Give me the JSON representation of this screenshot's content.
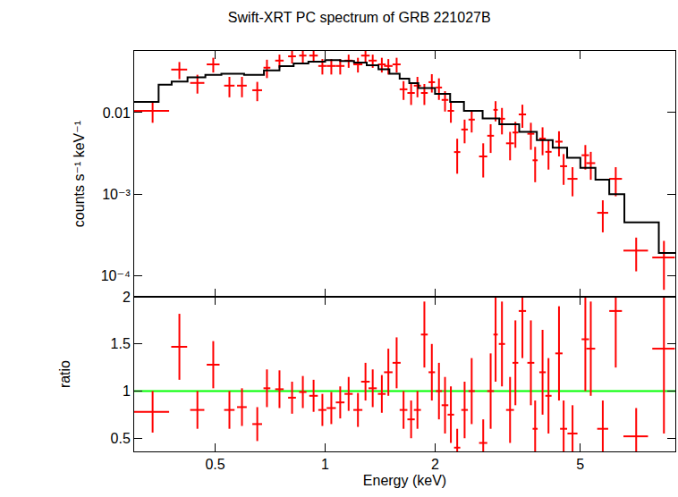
{
  "chart_data": [
    {
      "type": "scatter",
      "title": "Swift-XRT PC spectrum of GRB 221027B",
      "y_label": "counts s⁻¹ keV⁻¹",
      "log": true,
      "tick_labels": "y",
      "grid": false,
      "xlim": [
        0.3,
        9.1
      ],
      "xticks": [
        0.5,
        1,
        2,
        5
      ],
      "ylim": [
        5.5e-05,
        0.057
      ],
      "yticks": [
        {
          "value": 0.0001,
          "label": "10⁻⁴"
        },
        {
          "value": 0.001,
          "label": "10⁻³"
        },
        0.01
      ],
      "series": [
        {
          "type": "scatter",
          "color": "#ff0000",
          "x": [
            0.337,
            0.399,
            0.447,
            0.494,
            0.547,
            0.592,
            0.652,
            0.693,
            0.75,
            0.812,
            0.869,
            0.93,
            0.983,
            1.04,
            1.1,
            1.16,
            1.23,
            1.29,
            1.35,
            1.43,
            1.49,
            1.57,
            1.64,
            1.72,
            1.79,
            1.87,
            1.96,
            2.05,
            2.13,
            2.21,
            2.3,
            2.41,
            2.52,
            2.71,
            2.84,
            2.93,
            3.05,
            3.21,
            3.32,
            3.47,
            3.66,
            3.76,
            3.94,
            4.09,
            4.37,
            4.5,
            4.76,
            5.16,
            5.34,
            5.76,
            6.25,
            7.11,
            8.47
          ],
          "x_err": [
            0.037,
            0.02,
            0.02,
            0.02,
            0.018,
            0.018,
            0.02,
            0.015,
            0.02,
            0.02,
            0.02,
            0.025,
            0.025,
            0.03,
            0.03,
            0.03,
            0.035,
            0.035,
            0.035,
            0.035,
            0.04,
            0.04,
            0.04,
            0.04,
            0.04,
            0.04,
            0.04,
            0.04,
            0.045,
            0.045,
            0.045,
            0.05,
            0.05,
            0.07,
            0.06,
            0.04,
            0.06,
            0.08,
            0.06,
            0.08,
            0.08,
            0.06,
            0.08,
            0.08,
            0.1,
            0.1,
            0.15,
            0.12,
            0.15,
            0.2,
            0.25,
            0.55,
            0.6
          ],
          "values": [
            0.0105,
            0.0337,
            0.0231,
            0.039,
            0.0214,
            0.0214,
            0.0188,
            0.0355,
            0.0434,
            0.049,
            0.05,
            0.05,
            0.0373,
            0.0373,
            0.0373,
            0.0434,
            0.039,
            0.05,
            0.0434,
            0.039,
            0.0373,
            0.039,
            0.0193,
            0.0174,
            0.0214,
            0.0174,
            0.0236,
            0.0203,
            0.0143,
            0.0105,
            0.00328,
            0.0062,
            0.0082,
            0.0029,
            0.0052,
            0.0108,
            0.0084,
            0.0042,
            0.0057,
            0.0095,
            0.0055,
            0.0026,
            0.0048,
            0.0033,
            0.0044,
            0.0022,
            0.00154,
            0.003,
            0.0024,
            0.00059,
            0.00154,
            0.000203,
            0.000167
          ],
          "y_err": [
            0.003,
            0.008,
            0.006,
            0.008,
            0.006,
            0.006,
            0.005,
            0.009,
            0.008,
            0.009,
            0.009,
            0.009,
            0.008,
            0.008,
            0.008,
            0.008,
            0.008,
            0.009,
            0.008,
            0.008,
            0.008,
            0.008,
            0.005,
            0.005,
            0.006,
            0.005,
            0.006,
            0.006,
            0.004,
            0.003,
            0.0015,
            0.002,
            0.0025,
            0.0013,
            0.002,
            0.003,
            0.003,
            0.0016,
            0.002,
            0.003,
            0.002,
            0.0012,
            0.0018,
            0.0013,
            0.0015,
            0.0009,
            0.0006,
            0.001,
            0.0009,
            0.00025,
            0.0006,
            9e-05,
            0.0001
          ]
        },
        {
          "type": "line",
          "line_style": "step",
          "color": "#000000",
          "x": [
            0.3,
            0.35,
            0.38,
            0.42,
            0.47,
            0.52,
            0.6,
            0.68,
            0.75,
            0.82,
            0.9,
            1.0,
            1.1,
            1.2,
            1.3,
            1.4,
            1.5,
            1.6,
            1.7,
            1.8,
            2.0,
            2.2,
            2.4,
            2.7,
            3.0,
            3.4,
            3.8,
            4.2,
            4.6,
            5.0,
            5.5,
            6.0,
            6.6,
            7.3,
            8.2,
            9.1
          ],
          "values": [
            0.0135,
            0.022,
            0.024,
            0.027,
            0.029,
            0.03,
            0.029,
            0.033,
            0.037,
            0.04,
            0.042,
            0.044,
            0.043,
            0.041,
            0.038,
            0.034,
            0.03,
            0.026,
            0.023,
            0.02,
            0.017,
            0.0135,
            0.0105,
            0.0085,
            0.0072,
            0.0058,
            0.0046,
            0.0037,
            0.0028,
            0.0021,
            0.0015,
            0.001,
            0.00045,
            0.00045,
            0.00019,
            0.00019
          ]
        }
      ]
    },
    {
      "type": "scatter",
      "x_label": "Energy (keV)",
      "y_label": "ratio",
      "log": "x",
      "grid": false,
      "xlim": [
        0.3,
        9.1
      ],
      "xticks": [
        0.5,
        1,
        2,
        5
      ],
      "ylim": [
        0.36,
        2
      ],
      "yticks": [
        0.5,
        1,
        1.5,
        2
      ],
      "series": [
        {
          "type": "line",
          "color": "#00ff00",
          "x": [
            0.3,
            9.1
          ],
          "values": [
            1,
            1
          ]
        },
        {
          "type": "scatter",
          "color": "#ff0000",
          "x": [
            0.337,
            0.399,
            0.447,
            0.494,
            0.547,
            0.592,
            0.652,
            0.693,
            0.75,
            0.812,
            0.869,
            0.93,
            0.983,
            1.04,
            1.1,
            1.16,
            1.23,
            1.29,
            1.35,
            1.43,
            1.49,
            1.57,
            1.64,
            1.72,
            1.79,
            1.87,
            1.96,
            2.05,
            2.13,
            2.21,
            2.3,
            2.41,
            2.52,
            2.71,
            2.84,
            2.93,
            3.05,
            3.21,
            3.32,
            3.47,
            3.66,
            3.76,
            3.94,
            4.09,
            4.37,
            4.5,
            4.76,
            5.16,
            5.34,
            5.76,
            6.25,
            7.11,
            8.47
          ],
          "x_err": [
            0.037,
            0.02,
            0.02,
            0.02,
            0.018,
            0.018,
            0.02,
            0.015,
            0.02,
            0.02,
            0.02,
            0.025,
            0.025,
            0.03,
            0.03,
            0.03,
            0.035,
            0.035,
            0.035,
            0.035,
            0.04,
            0.04,
            0.04,
            0.04,
            0.04,
            0.04,
            0.04,
            0.04,
            0.045,
            0.045,
            0.045,
            0.05,
            0.05,
            0.07,
            0.06,
            0.04,
            0.06,
            0.08,
            0.06,
            0.08,
            0.08,
            0.06,
            0.08,
            0.08,
            0.1,
            0.1,
            0.15,
            0.12,
            0.15,
            0.2,
            0.25,
            0.55,
            0.6
          ],
          "values": [
            0.78,
            1.47,
            0.8,
            1.28,
            0.8,
            0.83,
            0.65,
            1.03,
            1.02,
            0.93,
            0.99,
            0.95,
            0.8,
            0.82,
            0.88,
            0.97,
            0.8,
            1.1,
            1.03,
            0.97,
            1.2,
            1.3,
            0.8,
            0.7,
            0.8,
            1.6,
            1.2,
            1.0,
            0.85,
            0.75,
            0.4,
            0.8,
            1.0,
            0.45,
            1.0,
            1.6,
            1.5,
            0.8,
            1.3,
            1.85,
            1.3,
            0.6,
            1.2,
            0.95,
            1.4,
            0.6,
            0.55,
            1.55,
            1.45,
            0.6,
            1.85,
            0.52,
            1.45
          ],
          "y_err": [
            0.22,
            0.35,
            0.2,
            0.25,
            0.2,
            0.2,
            0.18,
            0.2,
            0.2,
            0.17,
            0.17,
            0.17,
            0.17,
            0.17,
            0.17,
            0.18,
            0.18,
            0.2,
            0.2,
            0.2,
            0.25,
            0.27,
            0.2,
            0.2,
            0.2,
            0.35,
            0.3,
            0.3,
            0.3,
            0.3,
            0.2,
            0.3,
            0.35,
            0.25,
            0.4,
            0.5,
            0.45,
            0.35,
            0.45,
            0.5,
            0.45,
            0.3,
            0.45,
            0.4,
            0.5,
            0.3,
            0.3,
            0.55,
            0.5,
            0.3,
            0.6,
            0.3,
            0.9
          ]
        }
      ]
    }
  ]
}
